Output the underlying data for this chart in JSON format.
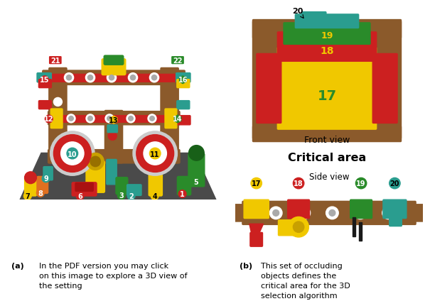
{
  "figsize": [
    6.0,
    4.26
  ],
  "dpi": 100,
  "background_color": "#ffffff",
  "panel_a_label": "(a)",
  "panel_a_caption": "In the PDF version you may click\non this image to explore a 3D view of\nthe setting",
  "panel_b_label": "(b)",
  "panel_b_caption": "This set of occluding\nobjects defines the\ncritical area for the 3D\nselection algorithm",
  "front_view_label": "Front view",
  "side_view_label": "Side view",
  "critical_area_label": "Critical area",
  "caption_fontsize": 8.0,
  "label_fontsize": 9.0,
  "critical_fontsize": 11.5,
  "wood_color": "#8B5A2B",
  "dark_wood": "#6B3A1F",
  "yellow": "#F0C800",
  "red": "#CC2020",
  "green": "#2A8B2A",
  "teal": "#2A9D8F",
  "orange": "#E07020",
  "gray_platform": "#4a4a4a",
  "white": "#ffffff",
  "light_gray": "#cccccc"
}
